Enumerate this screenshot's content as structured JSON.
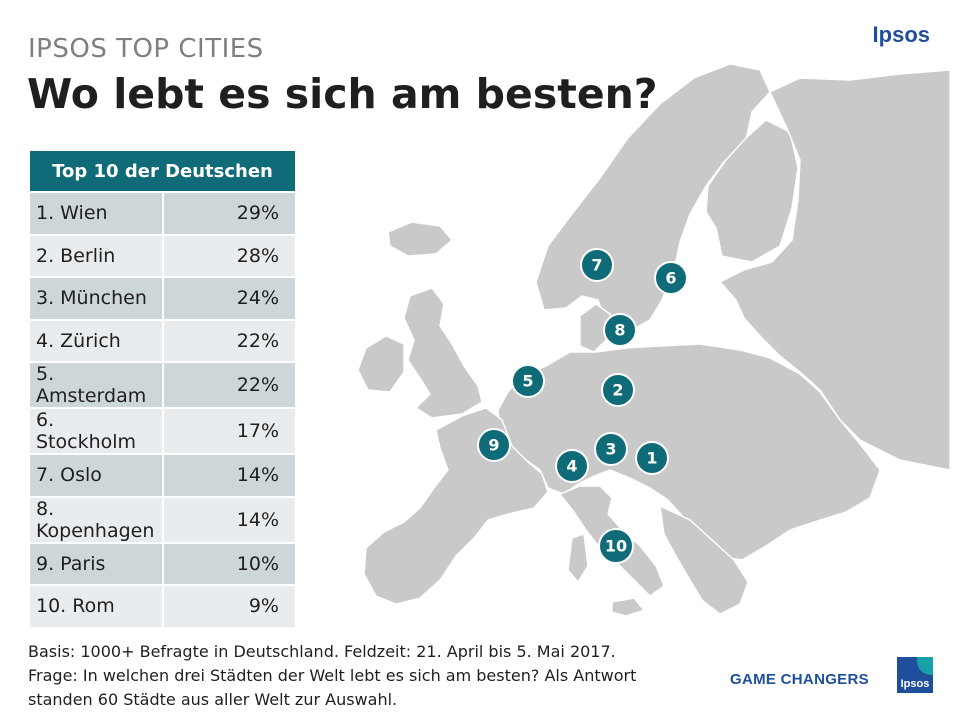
{
  "header": {
    "kicker": "IPSOS TOP CITIES",
    "title": "Wo lebt es sich am besten?",
    "brand": "Ipsos"
  },
  "table": {
    "header": "Top 10 der Deutschen",
    "rows": [
      {
        "city": "1. Wien",
        "pct": "29%"
      },
      {
        "city": "2. Berlin",
        "pct": "28%"
      },
      {
        "city": "3. München",
        "pct": "24%"
      },
      {
        "city": "4. Zürich",
        "pct": "22%"
      },
      {
        "city": "5. Amsterdam",
        "pct": "22%"
      },
      {
        "city": "6. Stockholm",
        "pct": "17%"
      },
      {
        "city": "7. Oslo",
        "pct": "14%"
      },
      {
        "city": "8. Kopenhagen",
        "pct": "14%"
      },
      {
        "city": "9. Paris",
        "pct": "10%"
      },
      {
        "city": "10. Rom",
        "pct": "9%"
      }
    ]
  },
  "map": {
    "markers": [
      "1",
      "2",
      "3",
      "4",
      "5",
      "6",
      "7",
      "8",
      "9",
      "10"
    ]
  },
  "footer": {
    "line1": "Basis: 1000+ Befragte in Deutschland.  Feldzeit: 21. April bis 5. Mai 2017.",
    "line2": "Frage: In welchen drei Städten der Welt lebt es sich am besten? Als Antwort",
    "line3": "standen 60 Städte aus aller Welt zur Auswahl.",
    "game_changers": "GAME CHANGERS",
    "logo_text": "Ipsos"
  },
  "colors": {
    "accent": "#0f6b77",
    "brand": "#1f4f9c",
    "land": "#c9c9c9"
  }
}
